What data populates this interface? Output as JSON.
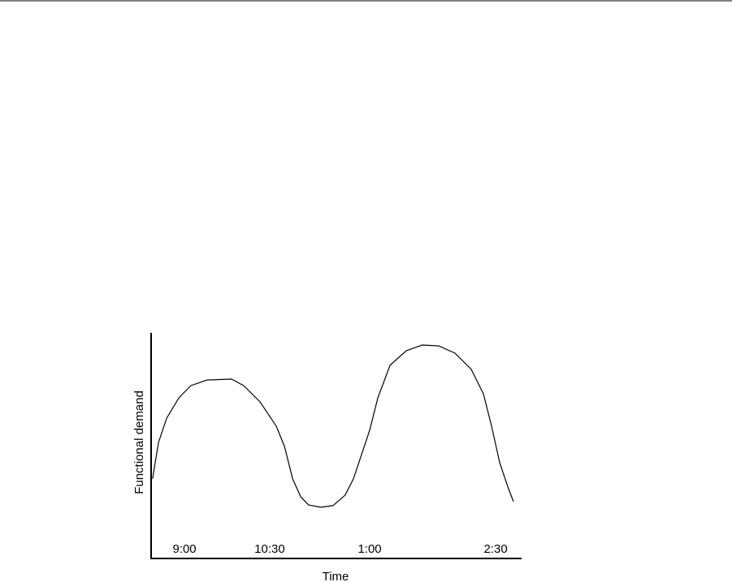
{
  "chart_data": {
    "type": "line",
    "x_label": "Time",
    "y_label": "Functional demand",
    "xlim": [
      0,
      100
    ],
    "ylim": [
      0,
      100
    ],
    "xticks": [
      {
        "value": 9,
        "label": "9:00"
      },
      {
        "value": 32,
        "label": "10:30"
      },
      {
        "value": 59,
        "label": "1:00"
      },
      {
        "value": 93,
        "label": "2:30"
      }
    ],
    "color": "#000000",
    "x": [
      0.4,
      2,
      4.2,
      7.5,
      10.7,
      15.1,
      21.7,
      25,
      29.4,
      33.8,
      36,
      38.2,
      40.4,
      42.5,
      45.8,
      49.1,
      52.4,
      54.6,
      56.8,
      59,
      61.2,
      64.5,
      68.9,
      73.2,
      77.6,
      82,
      86.4,
      89.7,
      91.9,
      94.1,
      96.3,
      97.8
    ],
    "values": [
      35.3,
      51.4,
      62.2,
      71.2,
      76.6,
      79.1,
      79.5,
      76.6,
      69.4,
      58.6,
      49.6,
      35.3,
      27.3,
      23.7,
      22.7,
      23.4,
      28.1,
      35.3,
      46,
      56.8,
      71.2,
      85.6,
      92.1,
      94.6,
      94.2,
      91,
      83.8,
      73,
      58.6,
      42.4,
      31.7,
      25.2
    ]
  }
}
